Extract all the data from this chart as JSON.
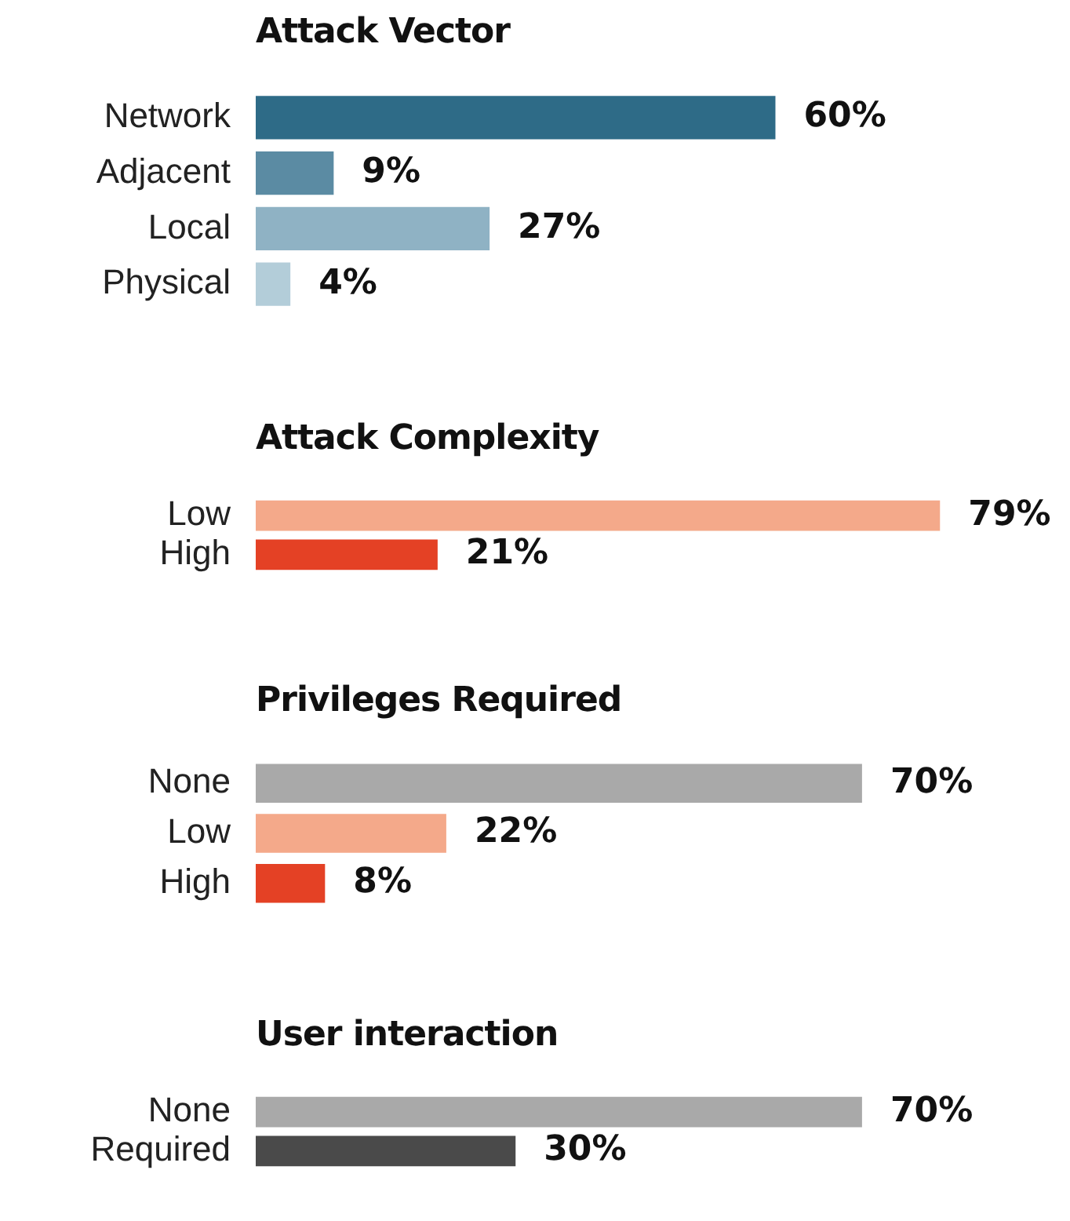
{
  "chart_data": [
    {
      "type": "bar",
      "orientation": "horizontal",
      "title": "Attack Vector",
      "categories": [
        "Network",
        "Adjacent",
        "Local",
        "Physical"
      ],
      "values": [
        60,
        9,
        27,
        4
      ],
      "colors": [
        "#2e6b87",
        "#5b8ba3",
        "#8fb2c4",
        "#b3cdd9"
      ],
      "value_labels": [
        "60%",
        "9%",
        "27%",
        "4%"
      ]
    },
    {
      "type": "bar",
      "orientation": "horizontal",
      "title": "Attack Complexity",
      "categories": [
        "Low",
        "High"
      ],
      "values": [
        79,
        21
      ],
      "colors": [
        "#f4a98a",
        "#e44125"
      ],
      "value_labels": [
        "79%",
        "21%"
      ]
    },
    {
      "type": "bar",
      "orientation": "horizontal",
      "title": "Privileges Required",
      "categories": [
        "None",
        "Low",
        "High"
      ],
      "values": [
        70,
        22,
        8
      ],
      "colors": [
        "#a9a9a9",
        "#f4a98a",
        "#e44125"
      ],
      "value_labels": [
        "70%",
        "22%",
        "8%"
      ]
    },
    {
      "type": "bar",
      "orientation": "horizontal",
      "title": "User interaction",
      "categories": [
        "None",
        "Required"
      ],
      "values": [
        70,
        30
      ],
      "colors": [
        "#a9a9a9",
        "#4a4a4a"
      ],
      "value_labels": [
        "70%",
        "30%"
      ]
    }
  ]
}
